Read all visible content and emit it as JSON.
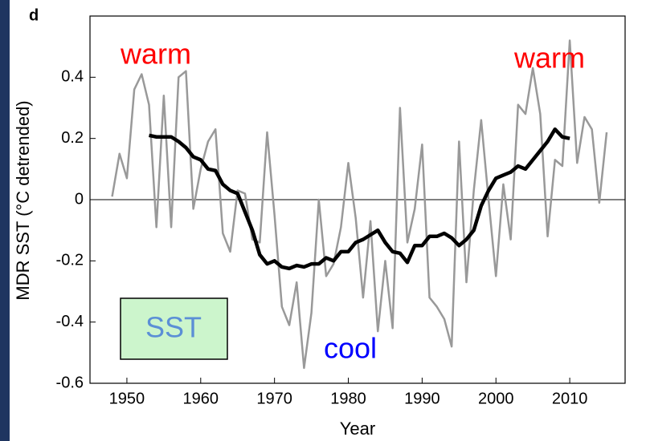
{
  "chart_data": {
    "type": "line",
    "panel_label": "d",
    "x_label": "Year",
    "y_label": "MDR SST (°C detrended)",
    "x": [
      1948,
      1949,
      1950,
      1951,
      1952,
      1953,
      1954,
      1955,
      1956,
      1957,
      1958,
      1959,
      1960,
      1961,
      1962,
      1963,
      1964,
      1965,
      1966,
      1967,
      1968,
      1969,
      1970,
      1971,
      1972,
      1973,
      1974,
      1975,
      1976,
      1977,
      1978,
      1979,
      1980,
      1981,
      1982,
      1983,
      1984,
      1985,
      1986,
      1987,
      1988,
      1989,
      1990,
      1991,
      1992,
      1993,
      1994,
      1995,
      1996,
      1997,
      1998,
      1999,
      2000,
      2001,
      2002,
      2003,
      2004,
      2005,
      2006,
      2007,
      2008,
      2009,
      2010,
      2011,
      2012,
      2013,
      2014,
      2015
    ],
    "series": [
      {
        "color": "#999999",
        "values": [
          0.01,
          0.15,
          0.07,
          0.36,
          0.41,
          0.31,
          -0.09,
          0.34,
          -0.09,
          0.4,
          0.42,
          -0.03,
          0.1,
          0.19,
          0.23,
          -0.11,
          -0.17,
          0.03,
          0.02,
          -0.13,
          -0.14,
          0.22,
          -0.05,
          -0.35,
          -0.41,
          -0.27,
          -0.55,
          -0.37,
          0.0,
          -0.25,
          -0.21,
          -0.09,
          0.12,
          -0.06,
          -0.32,
          -0.07,
          -0.43,
          -0.2,
          -0.42,
          0.3,
          -0.14,
          -0.03,
          0.18,
          -0.32,
          -0.35,
          -0.39,
          -0.48,
          0.19,
          -0.27,
          0.03,
          0.26,
          0.0,
          -0.25,
          0.05,
          -0.13,
          0.31,
          0.28,
          0.43,
          0.28,
          -0.12,
          0.13,
          0.11,
          0.52,
          0.12,
          0.27,
          0.23,
          -0.01,
          0.22
        ]
      },
      {
        "color": "#000000",
        "values": [
          null,
          null,
          null,
          null,
          null,
          0.21,
          0.205,
          0.205,
          0.205,
          0.19,
          0.17,
          0.14,
          0.13,
          0.1,
          0.095,
          0.05,
          0.03,
          0.02,
          -0.04,
          -0.1,
          -0.18,
          -0.21,
          -0.2,
          -0.22,
          -0.225,
          -0.215,
          -0.22,
          -0.21,
          -0.21,
          -0.19,
          -0.2,
          -0.17,
          -0.17,
          -0.14,
          -0.13,
          -0.115,
          -0.1,
          -0.14,
          -0.17,
          -0.175,
          -0.205,
          -0.15,
          -0.15,
          -0.12,
          -0.12,
          -0.11,
          -0.125,
          -0.15,
          -0.13,
          -0.1,
          -0.02,
          0.03,
          0.07,
          0.08,
          0.09,
          0.11,
          0.1,
          0.13,
          0.16,
          0.19,
          0.23,
          0.205,
          0.2,
          null,
          null,
          null,
          null,
          null
        ]
      }
    ],
    "xlim": [
      1945,
      2017.5
    ],
    "xticks": [
      1950,
      1960,
      1970,
      1980,
      1990,
      2000,
      2010
    ],
    "ylim": [
      -0.6,
      0.6
    ],
    "yticks": [
      -0.6,
      -0.4,
      -0.2,
      0,
      0.2,
      0.4
    ],
    "zero_line": true,
    "grid": false,
    "annotations": [
      {
        "text": "warm",
        "color": "#ff0000"
      },
      {
        "text": "warm",
        "color": "#ff0000"
      },
      {
        "text": "cool",
        "color": "#0000ff"
      }
    ],
    "inset_label": {
      "text": "SST",
      "color": "#5b8fd6",
      "background": "#ccf5cc"
    }
  }
}
